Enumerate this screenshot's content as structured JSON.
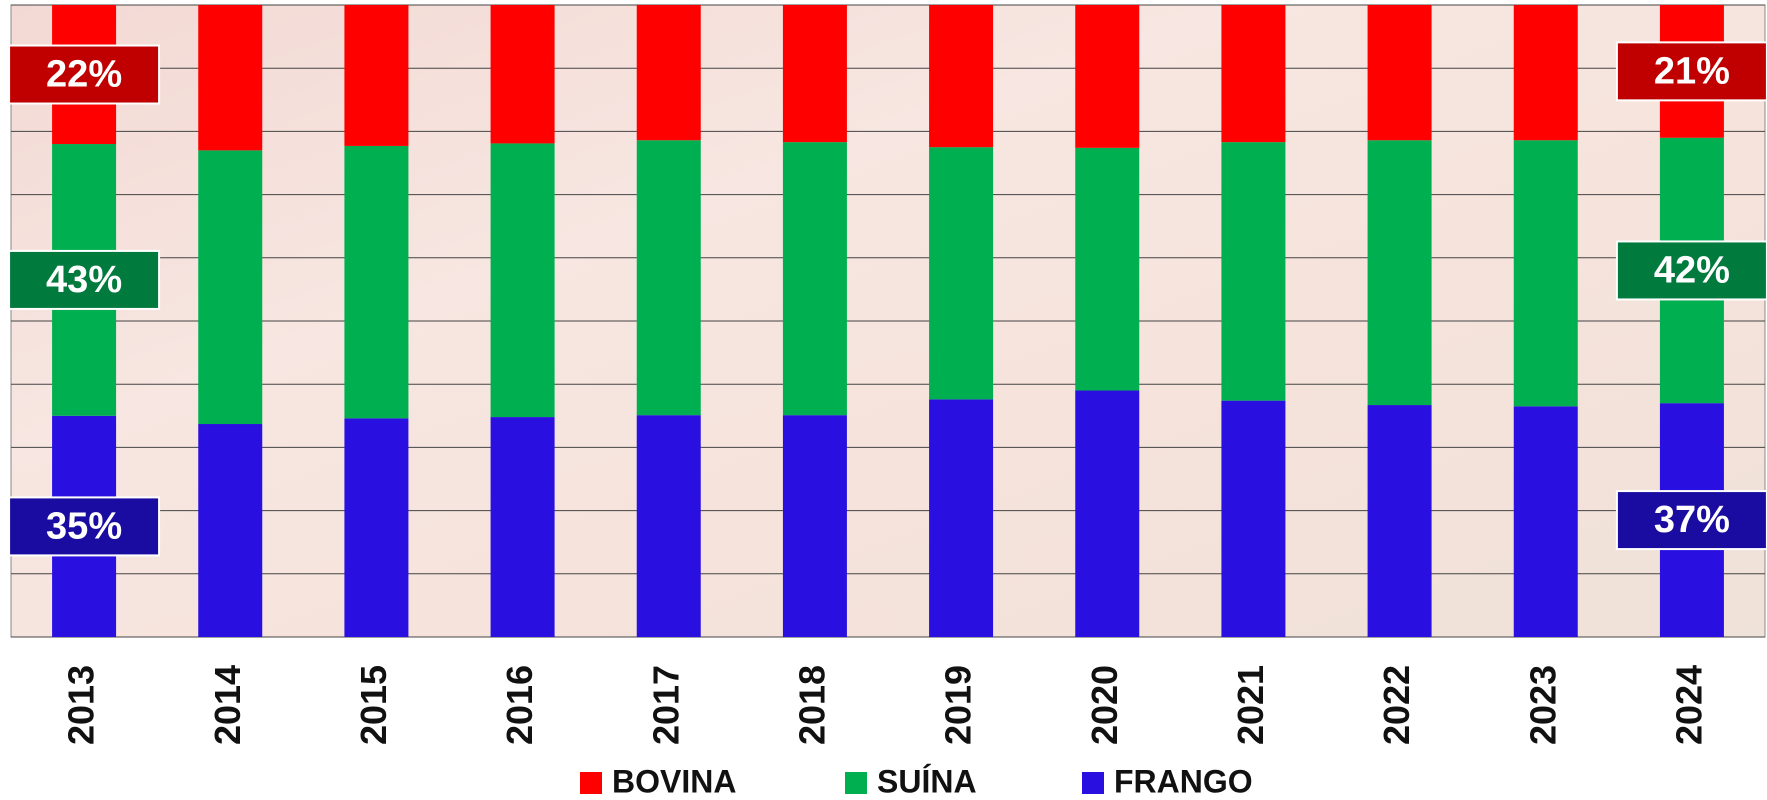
{
  "chart_data": {
    "type": "stacked-bar",
    "categories": [
      "2013",
      "2014",
      "2015",
      "2016",
      "2017",
      "2018",
      "2019",
      "2020",
      "2021",
      "2022",
      "2023",
      "2024"
    ],
    "series": [
      {
        "name": "BOVINA",
        "color": "#ff0000",
        "label_color": "#c00000",
        "values": [
          22,
          23.0,
          22.3,
          21.9,
          21.4,
          21.7,
          22.5,
          22.6,
          21.7,
          21.4,
          21.4,
          21
        ],
        "value_labels": [
          "22%",
          null,
          null,
          null,
          null,
          null,
          null,
          null,
          null,
          null,
          null,
          "21%"
        ]
      },
      {
        "name": "SUÍNA",
        "color": "#00b050",
        "label_color": "#007a3d",
        "values": [
          43,
          43.3,
          43.1,
          43.3,
          43.5,
          43.2,
          39.9,
          38.4,
          40.9,
          41.9,
          42.1,
          42
        ],
        "value_labels": [
          "43%",
          null,
          null,
          null,
          null,
          null,
          null,
          null,
          null,
          null,
          null,
          "42%"
        ]
      },
      {
        "name": "FRANGO",
        "color": "#2a10e0",
        "label_color": "#1a0ca0",
        "values": [
          35,
          33.7,
          34.6,
          34.8,
          35.1,
          35.1,
          37.6,
          39.0,
          37.4,
          36.7,
          36.5,
          37
        ],
        "value_labels": [
          "35%",
          null,
          null,
          null,
          null,
          null,
          null,
          null,
          null,
          null,
          null,
          "37%"
        ]
      }
    ],
    "ylim": [
      0,
      100
    ],
    "yticks": [
      0,
      10,
      20,
      30,
      40,
      50,
      60,
      70,
      80,
      90,
      100
    ],
    "grid": true
  }
}
